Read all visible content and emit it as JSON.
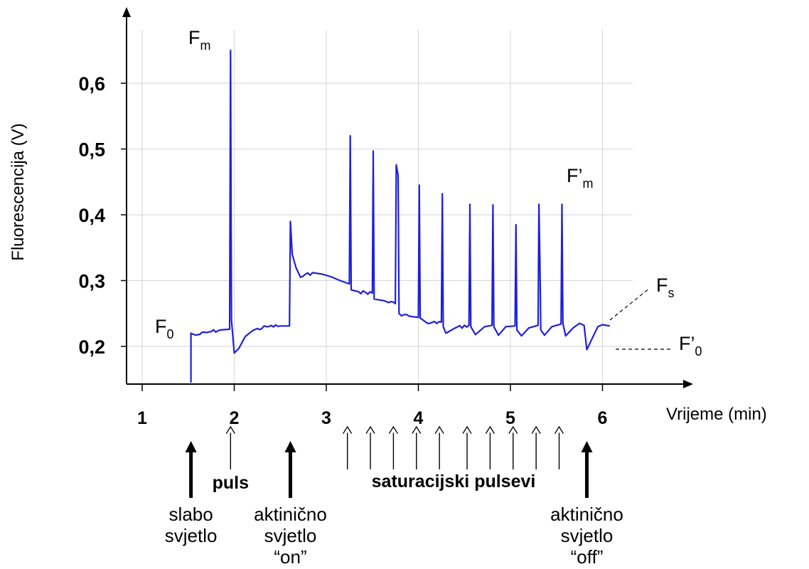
{
  "chart_data": {
    "type": "line",
    "title": "",
    "xlabel": "Vrijeme (min)",
    "ylabel": "Fluorescencija (V)",
    "xlim": [
      0.8,
      6.5
    ],
    "ylim": [
      0.145,
      0.66
    ],
    "x_ticks": [
      1,
      2,
      3,
      4,
      5,
      6
    ],
    "x_tick_labels": [
      "1",
      "2",
      "3",
      "4",
      "5",
      "6"
    ],
    "y_ticks": [
      0.2,
      0.3,
      0.4,
      0.5,
      0.6
    ],
    "y_tick_labels": [
      "0,2",
      "0,3",
      "0,4",
      "0,5",
      "0,6"
    ],
    "grid": true,
    "line_color": "#1f1fdc",
    "series": [
      {
        "points": [
          [
            1.53,
            0.145
          ],
          [
            1.53,
            0.22
          ],
          [
            1.58,
            0.217
          ],
          [
            1.7,
            0.221
          ],
          [
            1.85,
            0.225
          ],
          [
            1.95,
            0.226
          ],
          [
            1.96,
            0.65
          ],
          [
            1.97,
            0.24
          ],
          [
            2.0,
            0.19
          ],
          [
            2.05,
            0.197
          ],
          [
            2.12,
            0.215
          ],
          [
            2.2,
            0.224
          ],
          [
            2.35,
            0.23
          ],
          [
            2.5,
            0.231
          ],
          [
            2.6,
            0.231
          ],
          [
            2.61,
            0.39
          ],
          [
            2.63,
            0.34
          ],
          [
            2.67,
            0.32
          ],
          [
            2.72,
            0.305
          ],
          [
            2.85,
            0.312
          ],
          [
            2.95,
            0.31
          ],
          [
            3.05,
            0.306
          ],
          [
            3.15,
            0.3
          ],
          [
            3.25,
            0.295
          ],
          [
            3.26,
            0.52
          ],
          [
            3.27,
            0.286
          ],
          [
            3.35,
            0.283
          ],
          [
            3.5,
            0.281
          ],
          [
            3.51,
            0.497
          ],
          [
            3.52,
            0.272
          ],
          [
            3.6,
            0.27
          ],
          [
            3.75,
            0.265
          ],
          [
            3.76,
            0.476
          ],
          [
            3.78,
            0.46
          ],
          [
            3.79,
            0.25
          ],
          [
            3.9,
            0.246
          ],
          [
            4.0,
            0.244
          ],
          [
            4.01,
            0.445
          ],
          [
            4.02,
            0.243
          ],
          [
            4.1,
            0.235
          ],
          [
            4.25,
            0.237
          ],
          [
            4.26,
            0.432
          ],
          [
            4.27,
            0.23
          ],
          [
            4.3,
            0.22
          ],
          [
            4.4,
            0.228
          ],
          [
            4.55,
            0.232
          ],
          [
            4.56,
            0.416
          ],
          [
            4.57,
            0.23
          ],
          [
            4.62,
            0.218
          ],
          [
            4.72,
            0.23
          ],
          [
            4.8,
            0.232
          ],
          [
            4.81,
            0.415
          ],
          [
            4.82,
            0.23
          ],
          [
            4.87,
            0.217
          ],
          [
            4.95,
            0.23
          ],
          [
            5.05,
            0.231
          ],
          [
            5.06,
            0.385
          ],
          [
            5.07,
            0.225
          ],
          [
            5.12,
            0.216
          ],
          [
            5.2,
            0.228
          ],
          [
            5.3,
            0.232
          ],
          [
            5.31,
            0.416
          ],
          [
            5.32,
            0.335
          ],
          [
            5.33,
            0.225
          ],
          [
            5.37,
            0.217
          ],
          [
            5.45,
            0.23
          ],
          [
            5.55,
            0.234
          ],
          [
            5.56,
            0.416
          ],
          [
            5.57,
            0.235
          ],
          [
            5.6,
            0.216
          ],
          [
            5.68,
            0.228
          ],
          [
            5.75,
            0.235
          ],
          [
            5.8,
            0.232
          ],
          [
            5.83,
            0.195
          ],
          [
            5.88,
            0.21
          ],
          [
            5.95,
            0.23
          ],
          [
            6.0,
            0.233
          ],
          [
            6.08,
            0.231
          ]
        ]
      }
    ],
    "annotations": {
      "Fm": {
        "main": "F",
        "sub": "m",
        "x": 1.96,
        "y": 0.65
      },
      "F0": {
        "main": "F",
        "sub": "0",
        "x": 1.53,
        "y": 0.22
      },
      "Fpm": {
        "main": "F’",
        "sub": "m",
        "x": 5.56,
        "y": 0.416
      },
      "Fs": {
        "main": "F",
        "sub": "s",
        "x": 6.08,
        "y": 0.231
      },
      "Fp0": {
        "main": "F’",
        "sub": "0",
        "x": 5.83,
        "y": 0.195
      }
    },
    "events": [
      {
        "x": 1.53,
        "kind": "thick",
        "label_lines": [
          "slabo",
          "svjetlo"
        ],
        "bold": false
      },
      {
        "x": 1.96,
        "kind": "thin",
        "label_lines": [
          "puls"
        ],
        "bold": true
      },
      {
        "x": 2.61,
        "kind": "thick",
        "label_lines": [
          "aktinično",
          "svjetlo",
          "“on”"
        ],
        "bold": false
      },
      {
        "x": 5.83,
        "kind": "thick",
        "label_lines": [
          "aktinično",
          "svjetlo",
          "“off”"
        ],
        "bold": false
      }
    ],
    "saturation_pulses": {
      "label": "saturacijski pulsevi",
      "x": [
        3.26,
        3.51,
        3.76,
        4.01,
        4.26,
        4.56,
        4.81,
        5.06,
        5.31,
        5.56
      ]
    }
  }
}
